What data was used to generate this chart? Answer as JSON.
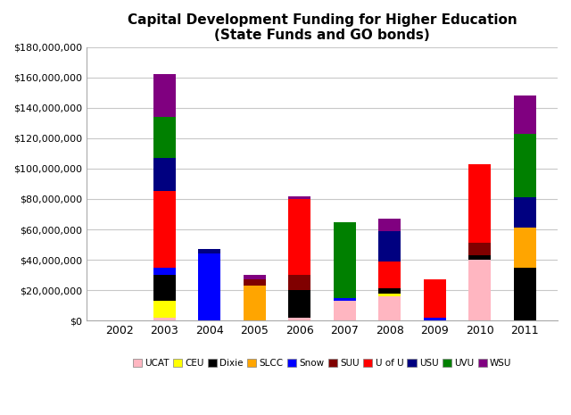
{
  "title": "Capital Development Funding for Higher Education\n(State Funds and GO bonds)",
  "years": [
    2002,
    2003,
    2004,
    2005,
    2006,
    2007,
    2008,
    2009,
    2010,
    2011
  ],
  "categories": [
    "UCAT",
    "CEU",
    "Dixie",
    "SLCC",
    "Snow",
    "SUU",
    "U of U",
    "USU",
    "UVU",
    "WSU"
  ],
  "colors": [
    "#ffb6c1",
    "#ffff00",
    "#000000",
    "#ffa500",
    "#0000ff",
    "#800000",
    "#ff0000",
    "#000080",
    "#008000",
    "#800080"
  ],
  "refined": {
    "UCAT": [
      0,
      2000000,
      0,
      0,
      2000000,
      13000000,
      16000000,
      0,
      40000000,
      0
    ],
    "CEU": [
      0,
      11000000,
      0,
      0,
      0,
      0,
      2000000,
      0,
      0,
      0
    ],
    "Dixie": [
      0,
      17000000,
      0,
      0,
      18000000,
      0,
      3000000,
      0,
      3000000,
      35000000
    ],
    "SLCC": [
      0,
      0,
      0,
      23000000,
      0,
      0,
      0,
      0,
      0,
      26000000
    ],
    "Snow": [
      0,
      5000000,
      44000000,
      0,
      0,
      2000000,
      0,
      2000000,
      0,
      0
    ],
    "SUU": [
      0,
      0,
      0,
      4000000,
      10000000,
      0,
      0,
      0,
      8000000,
      0
    ],
    "U of U": [
      0,
      50000000,
      0,
      0,
      50000000,
      0,
      18000000,
      25000000,
      52000000,
      0
    ],
    "USU": [
      0,
      22000000,
      3000000,
      0,
      0,
      0,
      20000000,
      0,
      0,
      20000000
    ],
    "UVU": [
      0,
      27000000,
      0,
      0,
      0,
      50000000,
      0,
      0,
      0,
      42000000
    ],
    "WSU": [
      0,
      28000000,
      0,
      3000000,
      2000000,
      0,
      8000000,
      0,
      0,
      25000000
    ]
  },
  "ylim": [
    0,
    180000000
  ],
  "yticks": [
    0,
    20000000,
    40000000,
    60000000,
    80000000,
    100000000,
    120000000,
    140000000,
    160000000,
    180000000
  ],
  "background_color": "#ffffff",
  "grid_color": "#c8c8c8",
  "figsize": [
    6.4,
    4.65
  ],
  "dpi": 100
}
